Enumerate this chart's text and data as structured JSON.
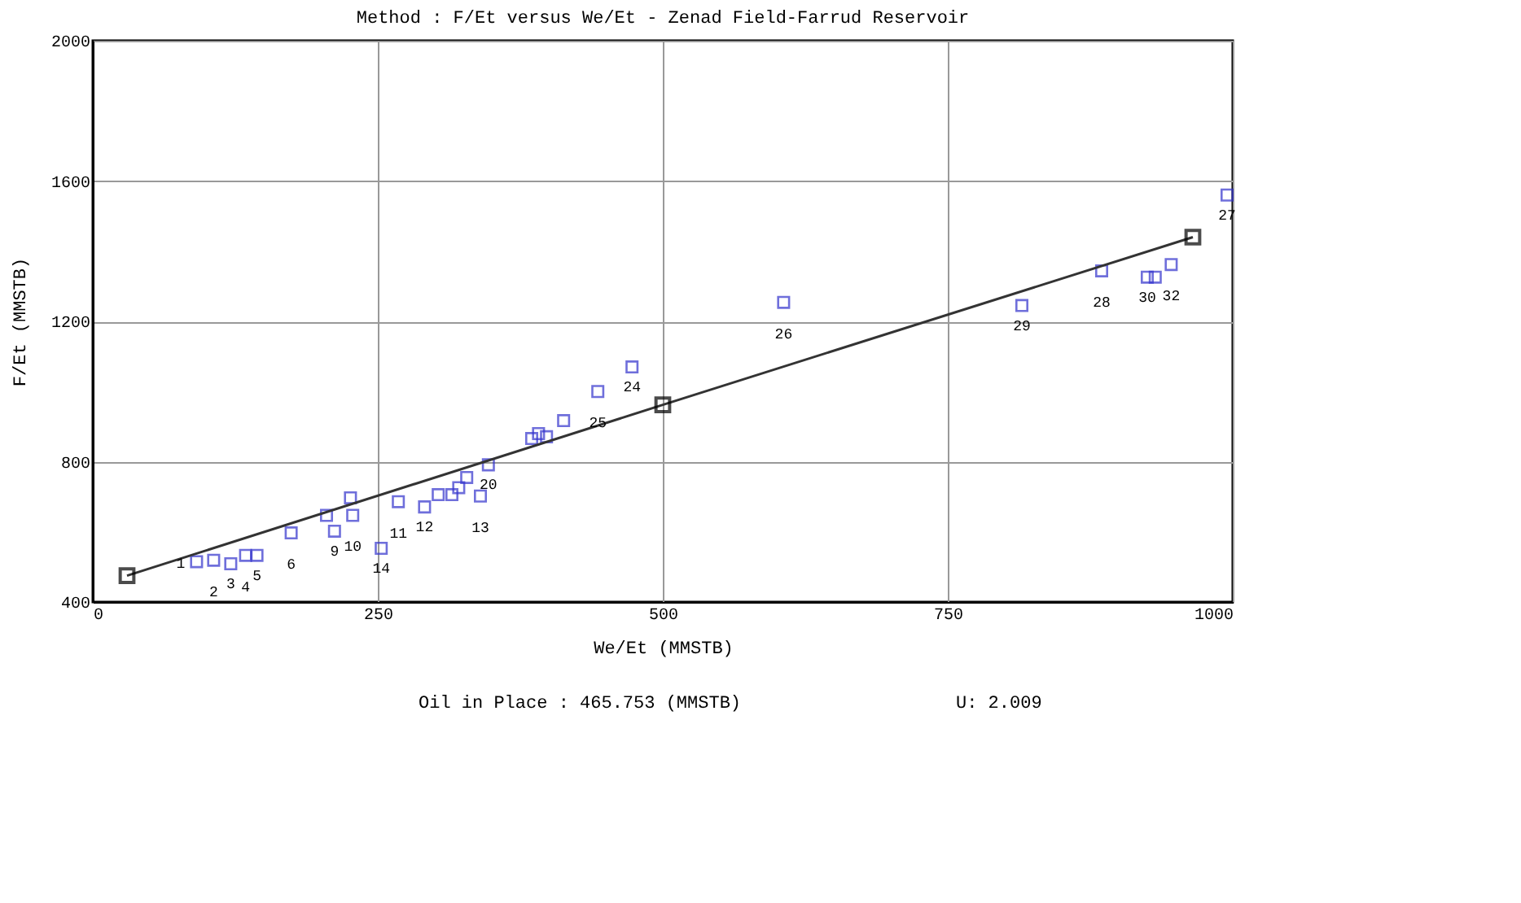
{
  "chart_data": {
    "type": "scatter",
    "title": "Method : F/Et versus We/Et - Zenad Field-Farrud Reservoir",
    "xlabel": "We/Et (MMSTB)",
    "ylabel": "F/Et (MMSTB)",
    "xlim": [
      0,
      1000
    ],
    "xticks": [
      0,
      250,
      500,
      750,
      1000
    ],
    "ylim": [
      400,
      2000
    ],
    "yticks": [
      400,
      800,
      1200,
      1600,
      2000
    ],
    "grid": true,
    "marker": "square",
    "series": [
      {
        "color": "#3333cc",
        "x": [
          91,
          106,
          121,
          134,
          144,
          174,
          205,
          212,
          226,
          228,
          253,
          268,
          291,
          303,
          315,
          321,
          328,
          340,
          347,
          385,
          391,
          398,
          413,
          443,
          473,
          606,
          815,
          885,
          925,
          932,
          946,
          995
        ],
        "values": [
          515,
          519,
          509,
          533,
          533,
          597,
          647,
          602,
          697,
          647,
          553,
          686,
          671,
          706,
          706,
          726,
          755,
          702,
          791,
          866,
          880,
          871,
          917,
          1000,
          1070,
          1254,
          1245,
          1344,
          1326,
          1326,
          1362,
          1560
        ]
      },
      {
        "type": "line",
        "color": "#333333",
        "x": [
          30,
          500,
          965
        ],
        "values": [
          475,
          962,
          1440
        ]
      }
    ],
    "annotations": [
      {
        "text": "1",
        "x": 91,
        "y": 515
      },
      {
        "text": "2",
        "x": 106,
        "y": 519
      },
      {
        "text": "3",
        "x": 121,
        "y": 509
      },
      {
        "text": "4",
        "x": 134,
        "y": 533
      },
      {
        "text": "5",
        "x": 144,
        "y": 533
      },
      {
        "text": "6",
        "x": 174,
        "y": 597
      },
      {
        "text": "9",
        "x": 212,
        "y": 602
      },
      {
        "text": "10",
        "x": 228,
        "y": 647
      },
      {
        "text": "14",
        "x": 253,
        "y": 553
      },
      {
        "text": "11",
        "x": 268,
        "y": 686
      },
      {
        "text": "12",
        "x": 291,
        "y": 671
      },
      {
        "text": "13",
        "x": 340,
        "y": 702
      },
      {
        "text": "20",
        "x": 347,
        "y": 791
      },
      {
        "text": "25",
        "x": 443,
        "y": 1000
      },
      {
        "text": "24",
        "x": 473,
        "y": 1070
      },
      {
        "text": "26",
        "x": 606,
        "y": 1254
      },
      {
        "text": "29",
        "x": 815,
        "y": 1245
      },
      {
        "text": "28",
        "x": 885,
        "y": 1344
      },
      {
        "text": "30",
        "x": 925,
        "y": 1326
      },
      {
        "text": "32",
        "x": 946,
        "y": 1362
      },
      {
        "text": "27",
        "x": 995,
        "y": 1560
      },
      "Oil in Place : 465.753 (MMSTB)",
      "U:  2.009"
    ]
  }
}
